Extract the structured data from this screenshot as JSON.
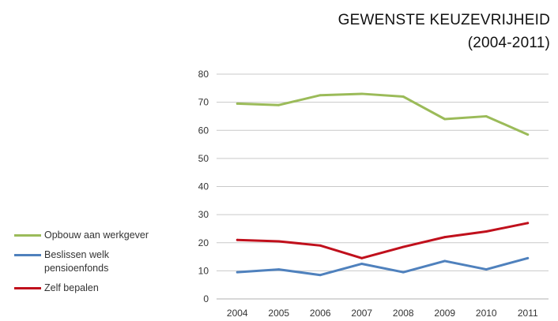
{
  "chart_data": {
    "type": "line",
    "title": "GEWENSTE KEUZEVRIJHEID",
    "subtitle": "(2004-2011)",
    "xlabel": "",
    "ylabel": "",
    "x": [
      "2004",
      "2005",
      "2006",
      "2007",
      "2008",
      "2009",
      "2010",
      "2011"
    ],
    "ylim": [
      0,
      80
    ],
    "yticks": [
      "0",
      "10",
      "20",
      "30",
      "40",
      "50",
      "60",
      "70",
      "80"
    ],
    "grid": true,
    "legend_position": "left",
    "series": [
      {
        "name": "Opbouw aan werkgever",
        "color": "#9bbb59",
        "values": [
          69.5,
          69,
          72.5,
          73,
          72,
          64,
          65,
          58.5
        ]
      },
      {
        "name": "Beslissen welk pensioenfonds",
        "color": "#4f81bd",
        "values": [
          9.5,
          10.5,
          8.5,
          12.5,
          9.5,
          13.5,
          10.5,
          14.5
        ]
      },
      {
        "name": "Zelf bepalen",
        "color": "#c0101c",
        "values": [
          21,
          20.5,
          19,
          14.5,
          18.5,
          22,
          24,
          27
        ]
      }
    ]
  }
}
